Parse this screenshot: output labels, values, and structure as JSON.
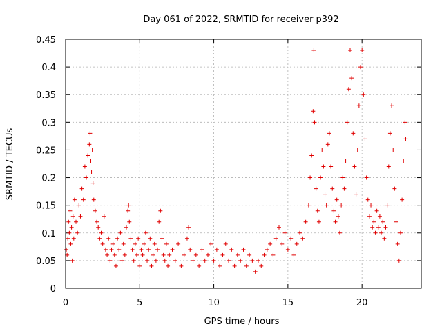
{
  "chart_data": {
    "type": "scatter",
    "title": "Day 061 of 2022, SRMTID for receiver p392",
    "xlabel": "GPS time / hours",
    "ylabel": "SRMTID / TECUs",
    "xlim": [
      0,
      24
    ],
    "ylim": [
      0,
      0.45
    ],
    "xticks": [
      0,
      5,
      10,
      15,
      20
    ],
    "xtick_labels": [
      "0",
      "5",
      "10",
      "15",
      "20"
    ],
    "yticks": [
      0,
      0.05,
      0.1,
      0.15,
      0.2,
      0.25,
      0.3,
      0.35,
      0.4,
      0.45
    ],
    "ytick_labels": [
      "0",
      "0.05",
      "0.1",
      "0.15",
      "0.2",
      "0.25",
      "0.3",
      "0.35",
      "0.4",
      "0.45"
    ],
    "grid": true,
    "series_color": "#e00000",
    "marker": "plus",
    "series": [
      {
        "name": "SRMTID",
        "points": [
          [
            0.05,
            0.07
          ],
          [
            0.1,
            0.06
          ],
          [
            0.15,
            0.09
          ],
          [
            0.2,
            0.12
          ],
          [
            0.25,
            0.1
          ],
          [
            0.3,
            0.14
          ],
          [
            0.35,
            0.08
          ],
          [
            0.4,
            0.11
          ],
          [
            0.45,
            0.05
          ],
          [
            0.5,
            0.13
          ],
          [
            0.55,
            0.09
          ],
          [
            0.6,
            0.16
          ],
          [
            0.7,
            0.12
          ],
          [
            0.8,
            0.1
          ],
          [
            0.9,
            0.15
          ],
          [
            1.0,
            0.13
          ],
          [
            1.1,
            0.18
          ],
          [
            1.2,
            0.16
          ],
          [
            1.3,
            0.22
          ],
          [
            1.4,
            0.2
          ],
          [
            1.5,
            0.24
          ],
          [
            1.6,
            0.26
          ],
          [
            1.65,
            0.28
          ],
          [
            1.7,
            0.23
          ],
          [
            1.75,
            0.21
          ],
          [
            1.8,
            0.25
          ],
          [
            1.85,
            0.19
          ],
          [
            1.9,
            0.16
          ],
          [
            2.0,
            0.14
          ],
          [
            2.1,
            0.12
          ],
          [
            2.2,
            0.11
          ],
          [
            2.3,
            0.09
          ],
          [
            2.4,
            0.1
          ],
          [
            2.5,
            0.08
          ],
          [
            2.6,
            0.13
          ],
          [
            2.7,
            0.07
          ],
          [
            2.8,
            0.06
          ],
          [
            2.9,
            0.09
          ],
          [
            3.0,
            0.05
          ],
          [
            3.1,
            0.07
          ],
          [
            3.2,
            0.08
          ],
          [
            3.3,
            0.06
          ],
          [
            3.4,
            0.04
          ],
          [
            3.5,
            0.09
          ],
          [
            3.6,
            0.07
          ],
          [
            3.7,
            0.1
          ],
          [
            3.8,
            0.05
          ],
          [
            3.9,
            0.08
          ],
          [
            4.0,
            0.06
          ],
          [
            4.1,
            0.11
          ],
          [
            4.2,
            0.14
          ],
          [
            4.25,
            0.15
          ],
          [
            4.3,
            0.12
          ],
          [
            4.4,
            0.09
          ],
          [
            4.5,
            0.07
          ],
          [
            4.6,
            0.05
          ],
          [
            4.7,
            0.08
          ],
          [
            4.8,
            0.06
          ],
          [
            4.9,
            0.09
          ],
          [
            5.0,
            0.04
          ],
          [
            5.1,
            0.07
          ],
          [
            5.2,
            0.06
          ],
          [
            5.3,
            0.08
          ],
          [
            5.4,
            0.1
          ],
          [
            5.5,
            0.05
          ],
          [
            5.6,
            0.07
          ],
          [
            5.7,
            0.09
          ],
          [
            5.8,
            0.04
          ],
          [
            5.9,
            0.06
          ],
          [
            6.0,
            0.08
          ],
          [
            6.1,
            0.05
          ],
          [
            6.2,
            0.07
          ],
          [
            6.3,
            0.12
          ],
          [
            6.4,
            0.14
          ],
          [
            6.5,
            0.09
          ],
          [
            6.6,
            0.06
          ],
          [
            6.7,
            0.05
          ],
          [
            6.8,
            0.08
          ],
          [
            6.9,
            0.04
          ],
          [
            7.0,
            0.06
          ],
          [
            7.2,
            0.07
          ],
          [
            7.4,
            0.05
          ],
          [
            7.6,
            0.08
          ],
          [
            7.8,
            0.04
          ],
          [
            8.0,
            0.06
          ],
          [
            8.2,
            0.09
          ],
          [
            8.3,
            0.11
          ],
          [
            8.4,
            0.07
          ],
          [
            8.6,
            0.05
          ],
          [
            8.8,
            0.06
          ],
          [
            9.0,
            0.04
          ],
          [
            9.2,
            0.07
          ],
          [
            9.4,
            0.05
          ],
          [
            9.6,
            0.06
          ],
          [
            9.8,
            0.08
          ],
          [
            10.0,
            0.05
          ],
          [
            10.2,
            0.07
          ],
          [
            10.4,
            0.04
          ],
          [
            10.6,
            0.06
          ],
          [
            10.8,
            0.08
          ],
          [
            11.0,
            0.05
          ],
          [
            11.2,
            0.07
          ],
          [
            11.4,
            0.04
          ],
          [
            11.6,
            0.06
          ],
          [
            11.8,
            0.05
          ],
          [
            12.0,
            0.07
          ],
          [
            12.2,
            0.04
          ],
          [
            12.4,
            0.06
          ],
          [
            12.6,
            0.05
          ],
          [
            12.8,
            0.03
          ],
          [
            13.0,
            0.05
          ],
          [
            13.2,
            0.04
          ],
          [
            13.4,
            0.06
          ],
          [
            13.6,
            0.07
          ],
          [
            13.8,
            0.08
          ],
          [
            14.0,
            0.06
          ],
          [
            14.2,
            0.09
          ],
          [
            14.4,
            0.11
          ],
          [
            14.6,
            0.08
          ],
          [
            14.8,
            0.1
          ],
          [
            15.0,
            0.07
          ],
          [
            15.2,
            0.09
          ],
          [
            15.4,
            0.06
          ],
          [
            15.6,
            0.08
          ],
          [
            15.8,
            0.1
          ],
          [
            16.0,
            0.09
          ],
          [
            16.2,
            0.12
          ],
          [
            16.4,
            0.15
          ],
          [
            16.5,
            0.2
          ],
          [
            16.6,
            0.24
          ],
          [
            16.7,
            0.32
          ],
          [
            16.75,
            0.43
          ],
          [
            16.8,
            0.3
          ],
          [
            16.9,
            0.18
          ],
          [
            17.0,
            0.14
          ],
          [
            17.1,
            0.12
          ],
          [
            17.2,
            0.2
          ],
          [
            17.3,
            0.25
          ],
          [
            17.4,
            0.22
          ],
          [
            17.5,
            0.17
          ],
          [
            17.6,
            0.15
          ],
          [
            17.7,
            0.26
          ],
          [
            17.8,
            0.28
          ],
          [
            17.9,
            0.22
          ],
          [
            18.0,
            0.18
          ],
          [
            18.1,
            0.14
          ],
          [
            18.2,
            0.12
          ],
          [
            18.3,
            0.16
          ],
          [
            18.4,
            0.13
          ],
          [
            18.5,
            0.1
          ],
          [
            18.6,
            0.15
          ],
          [
            18.7,
            0.2
          ],
          [
            18.8,
            0.18
          ],
          [
            18.9,
            0.23
          ],
          [
            19.0,
            0.3
          ],
          [
            19.1,
            0.36
          ],
          [
            19.2,
            0.43
          ],
          [
            19.3,
            0.38
          ],
          [
            19.4,
            0.28
          ],
          [
            19.5,
            0.22
          ],
          [
            19.6,
            0.17
          ],
          [
            19.7,
            0.25
          ],
          [
            19.8,
            0.33
          ],
          [
            19.9,
            0.4
          ],
          [
            20.0,
            0.43
          ],
          [
            20.1,
            0.35
          ],
          [
            20.2,
            0.27
          ],
          [
            20.3,
            0.2
          ],
          [
            20.4,
            0.16
          ],
          [
            20.5,
            0.13
          ],
          [
            20.6,
            0.15
          ],
          [
            20.7,
            0.11
          ],
          [
            20.8,
            0.12
          ],
          [
            20.9,
            0.1
          ],
          [
            21.0,
            0.14
          ],
          [
            21.1,
            0.11
          ],
          [
            21.2,
            0.13
          ],
          [
            21.3,
            0.1
          ],
          [
            21.4,
            0.12
          ],
          [
            21.5,
            0.09
          ],
          [
            21.6,
            0.11
          ],
          [
            21.7,
            0.15
          ],
          [
            21.8,
            0.22
          ],
          [
            21.9,
            0.28
          ],
          [
            22.0,
            0.33
          ],
          [
            22.1,
            0.25
          ],
          [
            22.2,
            0.18
          ],
          [
            22.3,
            0.12
          ],
          [
            22.4,
            0.08
          ],
          [
            22.5,
            0.05
          ],
          [
            22.6,
            0.1
          ],
          [
            22.7,
            0.16
          ],
          [
            22.8,
            0.23
          ],
          [
            22.9,
            0.3
          ],
          [
            22.95,
            0.27
          ]
        ]
      }
    ]
  }
}
